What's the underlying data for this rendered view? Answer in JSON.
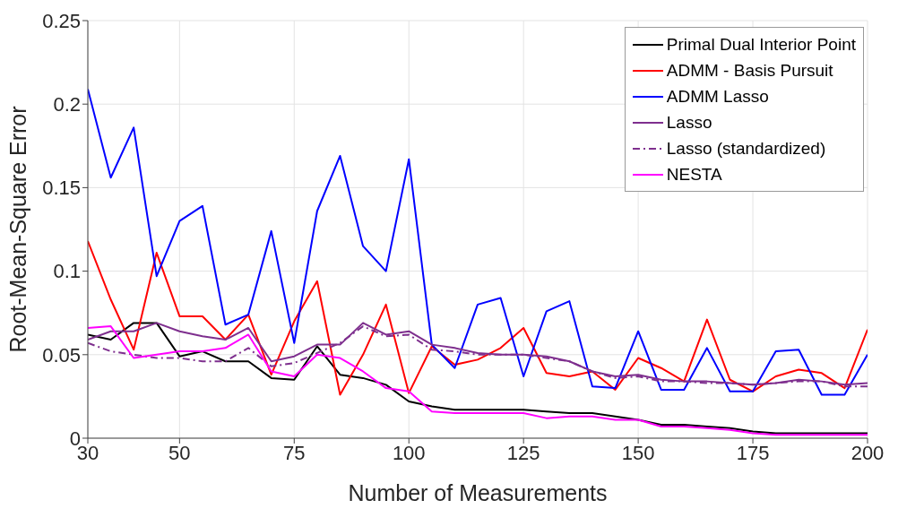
{
  "chart_data": {
    "type": "line",
    "xlabel": "Number of Measurements",
    "ylabel": "Root-Mean-Square Error",
    "x": [
      30,
      35,
      40,
      45,
      50,
      55,
      60,
      65,
      70,
      75,
      80,
      85,
      90,
      95,
      100,
      105,
      110,
      115,
      120,
      125,
      130,
      135,
      140,
      145,
      150,
      155,
      160,
      165,
      170,
      175,
      180,
      185,
      190,
      195,
      200
    ],
    "series": [
      {
        "name": "Primal Dual Interior Point",
        "color": "#000000",
        "line_style": "solid",
        "values": [
          0.062,
          0.059,
          0.069,
          0.069,
          0.049,
          0.052,
          0.046,
          0.046,
          0.036,
          0.035,
          0.055,
          0.038,
          0.036,
          0.032,
          0.022,
          0.019,
          0.017,
          0.017,
          0.017,
          0.017,
          0.016,
          0.015,
          0.015,
          0.013,
          0.011,
          0.008,
          0.008,
          0.007,
          0.006,
          0.004,
          0.003,
          0.003,
          0.003,
          0.003,
          0.003
        ]
      },
      {
        "name": "ADMM - Basis Pursuit",
        "color": "#ff0000",
        "line_style": "solid",
        "values": [
          0.118,
          0.083,
          0.053,
          0.111,
          0.073,
          0.073,
          0.059,
          0.074,
          0.038,
          0.07,
          0.094,
          0.026,
          0.05,
          0.08,
          0.027,
          0.055,
          0.044,
          0.047,
          0.054,
          0.066,
          0.039,
          0.037,
          0.04,
          0.029,
          0.048,
          0.042,
          0.034,
          0.071,
          0.035,
          0.028,
          0.037,
          0.041,
          0.039,
          0.03,
          0.065
        ]
      },
      {
        "name": "ADMM Lasso",
        "color": "#0000ff",
        "line_style": "solid",
        "values": [
          0.209,
          0.156,
          0.186,
          0.097,
          0.13,
          0.139,
          0.068,
          0.074,
          0.124,
          0.057,
          0.136,
          0.169,
          0.115,
          0.1,
          0.167,
          0.056,
          0.042,
          0.08,
          0.084,
          0.037,
          0.076,
          0.082,
          0.031,
          0.03,
          0.064,
          0.029,
          0.029,
          0.054,
          0.028,
          0.028,
          0.052,
          0.053,
          0.026,
          0.026,
          0.05
        ]
      },
      {
        "name": "Lasso",
        "color": "#7e2f8e",
        "line_style": "solid",
        "values": [
          0.059,
          0.064,
          0.064,
          0.069,
          0.064,
          0.061,
          0.059,
          0.066,
          0.046,
          0.049,
          0.056,
          0.056,
          0.069,
          0.062,
          0.064,
          0.056,
          0.054,
          0.051,
          0.05,
          0.05,
          0.049,
          0.046,
          0.04,
          0.037,
          0.038,
          0.035,
          0.034,
          0.034,
          0.033,
          0.032,
          0.033,
          0.035,
          0.034,
          0.032,
          0.033
        ]
      },
      {
        "name": "Lasso (standardized)",
        "color": "#7e2f8e",
        "line_style": "dashed",
        "values": [
          0.057,
          0.052,
          0.05,
          0.048,
          0.048,
          0.046,
          0.046,
          0.054,
          0.043,
          0.045,
          0.051,
          0.057,
          0.067,
          0.061,
          0.062,
          0.053,
          0.052,
          0.05,
          0.05,
          0.05,
          0.048,
          0.046,
          0.04,
          0.036,
          0.037,
          0.034,
          0.034,
          0.033,
          0.033,
          0.032,
          0.033,
          0.034,
          0.034,
          0.031,
          0.031
        ]
      },
      {
        "name": "NESTA",
        "color": "#ff00ff",
        "line_style": "solid",
        "values": [
          0.066,
          0.067,
          0.048,
          0.05,
          0.052,
          0.052,
          0.054,
          0.062,
          0.04,
          0.037,
          0.05,
          0.048,
          0.04,
          0.03,
          0.028,
          0.016,
          0.015,
          0.015,
          0.015,
          0.015,
          0.012,
          0.013,
          0.013,
          0.011,
          0.011,
          0.007,
          0.007,
          0.006,
          0.005,
          0.003,
          0.002,
          0.002,
          0.002,
          0.002,
          0.002
        ]
      }
    ],
    "xlim": [
      30,
      200
    ],
    "xticks": [
      30,
      50,
      75,
      100,
      125,
      150,
      175,
      200
    ],
    "ylim": [
      0,
      0.25
    ],
    "yticks": [
      0,
      0.05,
      0.1,
      0.15,
      0.2,
      0.25
    ],
    "grid": true,
    "legend": "top right"
  }
}
